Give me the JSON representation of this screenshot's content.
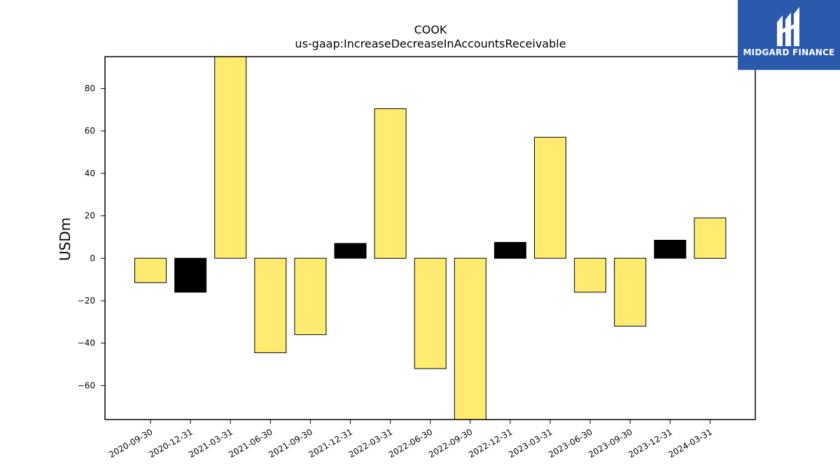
{
  "chart_data": {
    "type": "bar",
    "title": "COOK",
    "subtitle": "us-gaap:IncreaseDecreaseInAccountsReceivable",
    "xlabel": "",
    "ylabel": "USDm",
    "ylim": [
      -76,
      95
    ],
    "yticks": [
      -60,
      -40,
      -20,
      0,
      20,
      40,
      60,
      80
    ],
    "ytick_labels": [
      "−60",
      "−40",
      "−20",
      "0",
      "20",
      "40",
      "60",
      "80"
    ],
    "grid": false,
    "categories": [
      "2020-09-30",
      "2020-12-31",
      "2021-03-31",
      "2021-06-30",
      "2021-09-30",
      "2021-12-31",
      "2022-03-31",
      "2022-06-30",
      "2022-09-30",
      "2022-12-31",
      "2023-03-31",
      "2023-06-30",
      "2023-09-30",
      "2023-12-31",
      "2024-03-31"
    ],
    "values": [
      -11.5,
      -16,
      95,
      -44.5,
      -36,
      7,
      70.5,
      -52,
      -76,
      7.5,
      57,
      -16,
      -32,
      8.5,
      19
    ],
    "bar_colors": [
      "#ffeb70",
      "#000000",
      "#ffeb70",
      "#ffeb70",
      "#ffeb70",
      "#000000",
      "#ffeb70",
      "#ffeb70",
      "#ffeb70",
      "#000000",
      "#ffeb70",
      "#ffeb70",
      "#ffeb70",
      "#000000",
      "#ffeb70"
    ]
  },
  "logo": {
    "text": "MIDGARD FINANCE",
    "background": "#2b5aad"
  }
}
